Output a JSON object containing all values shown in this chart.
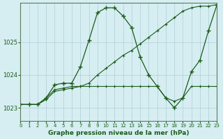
{
  "xlabel": "Graphe pression niveau de la mer (hPa)",
  "xlim": [
    0,
    23
  ],
  "ylim": [
    1022.6,
    1026.2
  ],
  "yticks": [
    1023,
    1024,
    1025
  ],
  "xticks": [
    0,
    1,
    2,
    3,
    4,
    5,
    6,
    7,
    8,
    9,
    10,
    11,
    12,
    13,
    14,
    15,
    16,
    17,
    18,
    19,
    20,
    21,
    22,
    23
  ],
  "bg_color": "#d6eef2",
  "grid_color": "#b0cdd4",
  "line_color": "#1a5c1a",
  "series1": {
    "x": [
      0,
      1,
      2,
      3,
      4,
      5,
      6,
      7,
      8,
      9,
      10,
      11,
      12,
      13,
      14,
      15,
      16,
      17,
      18,
      19,
      20,
      21,
      22,
      23
    ],
    "y": [
      1023.1,
      1023.1,
      1023.1,
      1023.3,
      1023.55,
      1023.6,
      1023.65,
      1023.65,
      1023.65,
      1023.65,
      1023.65,
      1023.65,
      1023.65,
      1023.65,
      1023.65,
      1023.65,
      1023.65,
      1023.3,
      1023.2,
      1023.3,
      1023.65,
      1023.65,
      1023.65,
      1023.65
    ]
  },
  "series2": {
    "x": [
      0,
      1,
      2,
      3,
      4,
      5,
      6,
      7,
      8,
      9,
      10,
      11,
      12,
      13,
      14,
      15,
      16,
      17,
      18,
      19,
      20,
      21,
      22,
      23
    ],
    "y": [
      1023.1,
      1023.1,
      1023.1,
      1023.3,
      1023.7,
      1023.75,
      1023.75,
      1024.25,
      1025.05,
      1025.9,
      1026.05,
      1026.05,
      1025.8,
      1025.45,
      1024.55,
      1024.0,
      1023.65,
      1023.3,
      1023.0,
      1023.3,
      1024.1,
      1024.45,
      1025.35,
      1026.15
    ]
  },
  "series3": {
    "x": [
      0,
      1,
      2,
      3,
      4,
      5,
      6,
      7,
      8,
      9,
      10,
      11,
      12,
      13,
      14,
      15,
      16,
      17,
      18,
      19,
      20,
      21,
      22,
      23
    ],
    "y": [
      1023.1,
      1023.1,
      1023.1,
      1023.25,
      1023.5,
      1023.55,
      1023.6,
      1023.65,
      1023.75,
      1024.0,
      1024.2,
      1024.4,
      1024.6,
      1024.75,
      1024.95,
      1025.15,
      1025.35,
      1025.55,
      1025.75,
      1025.95,
      1026.05,
      1026.1,
      1026.1,
      1026.15
    ]
  }
}
